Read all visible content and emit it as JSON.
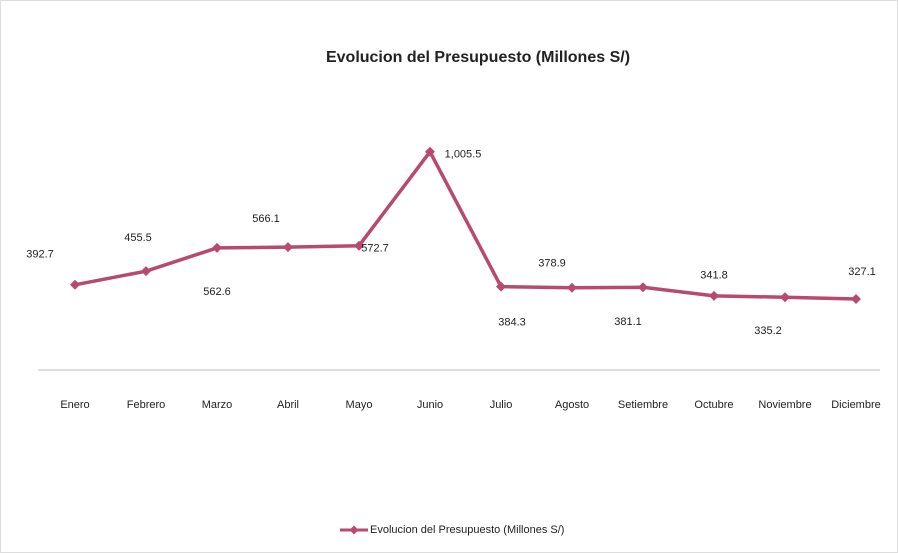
{
  "chart_data": {
    "type": "line",
    "title": "Evolucion del Presupuesto (Millones S/)",
    "categories": [
      "Enero",
      "Febrero",
      "Marzo",
      "Abril",
      "Mayo",
      "Junio",
      "Julio",
      "Agosto",
      "Setiembre",
      "Octubre",
      "Noviembre",
      "Diciembre"
    ],
    "series": [
      {
        "name": "Evolucion del Presupuesto (Millones S/)",
        "color": "#b84a6e",
        "values": [
          392.7,
          455.5,
          562.6,
          566.1,
          572.7,
          1005.5,
          384.3,
          378.9,
          381.1,
          341.8,
          335.2,
          327.1
        ],
        "value_labels": [
          "392.7",
          "455.5",
          "562.6",
          "566.1",
          "572.7",
          "1,005.5",
          "384.3",
          "378.9",
          "381.1",
          "341.8",
          "335.2",
          "327.1"
        ]
      }
    ],
    "ylim": [
      0,
      1200
    ],
    "legend": "bottom"
  }
}
